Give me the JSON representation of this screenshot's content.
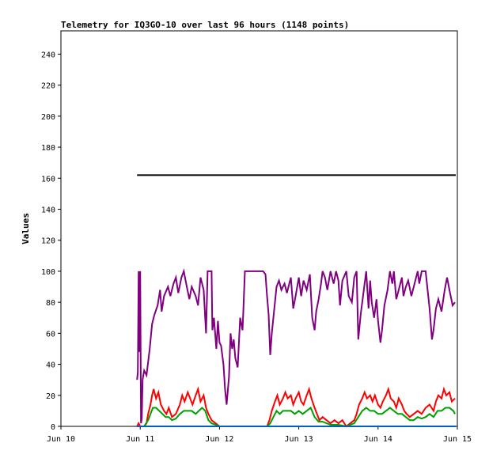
{
  "chart_data": {
    "type": "line",
    "title": "Telemetry for IQ3GO-10 over last 96 hours (1148 points)",
    "ylabel": "Values",
    "xlabel": "",
    "ylim": [
      0,
      255
    ],
    "xlim": [
      0,
      5
    ],
    "x_unit": "days",
    "x_ticks": [
      {
        "label": "Jun 10",
        "value": 0
      },
      {
        "label": "Jun 11",
        "value": 1
      },
      {
        "label": "Jun 12",
        "value": 2
      },
      {
        "label": "Jun 13",
        "value": 3
      },
      {
        "label": "Jun 14",
        "value": 4
      },
      {
        "label": "Jun 15",
        "value": 5
      }
    ],
    "y_ticks": [
      0,
      20,
      40,
      60,
      80,
      100,
      120,
      140,
      160,
      180,
      200,
      220,
      240
    ],
    "grid": false,
    "series": [
      {
        "color": "#000000",
        "points": [
          [
            0.96,
            162
          ],
          [
            4.98,
            162
          ]
        ]
      },
      {
        "color": "#800080",
        "points": [
          [
            0.96,
            30
          ],
          [
            0.97,
            35
          ],
          [
            0.98,
            100
          ],
          [
            0.99,
            48
          ],
          [
            1.0,
            100
          ],
          [
            1.01,
            2
          ],
          [
            1.02,
            5
          ],
          [
            1.03,
            30
          ],
          [
            1.05,
            36
          ],
          [
            1.08,
            33
          ],
          [
            1.12,
            50
          ],
          [
            1.15,
            66
          ],
          [
            1.18,
            72
          ],
          [
            1.22,
            78
          ],
          [
            1.25,
            88
          ],
          [
            1.27,
            74
          ],
          [
            1.3,
            84
          ],
          [
            1.35,
            90
          ],
          [
            1.38,
            84
          ],
          [
            1.42,
            92
          ],
          [
            1.45,
            96
          ],
          [
            1.48,
            86
          ],
          [
            1.52,
            96
          ],
          [
            1.55,
            100
          ],
          [
            1.58,
            92
          ],
          [
            1.62,
            82
          ],
          [
            1.65,
            90
          ],
          [
            1.7,
            84
          ],
          [
            1.73,
            78
          ],
          [
            1.76,
            96
          ],
          [
            1.8,
            88
          ],
          [
            1.83,
            60
          ],
          [
            1.85,
            100
          ],
          [
            1.9,
            100
          ],
          [
            1.91,
            62
          ],
          [
            1.93,
            70
          ],
          [
            1.96,
            50
          ],
          [
            1.98,
            68
          ],
          [
            2.0,
            54
          ],
          [
            2.02,
            52
          ],
          [
            2.05,
            40
          ],
          [
            2.07,
            24
          ],
          [
            2.09,
            14
          ],
          [
            2.12,
            32
          ],
          [
            2.14,
            60
          ],
          [
            2.16,
            50
          ],
          [
            2.18,
            56
          ],
          [
            2.2,
            44
          ],
          [
            2.23,
            38
          ],
          [
            2.26,
            70
          ],
          [
            2.29,
            62
          ],
          [
            2.3,
            74
          ],
          [
            2.32,
            100
          ],
          [
            2.35,
            100
          ],
          [
            2.4,
            100
          ],
          [
            2.48,
            100
          ],
          [
            2.55,
            100
          ],
          [
            2.58,
            98
          ],
          [
            2.6,
            84
          ],
          [
            2.62,
            72
          ],
          [
            2.64,
            46
          ],
          [
            2.66,
            60
          ],
          [
            2.7,
            80
          ],
          [
            2.72,
            90
          ],
          [
            2.75,
            94
          ],
          [
            2.78,
            88
          ],
          [
            2.82,
            92
          ],
          [
            2.85,
            86
          ],
          [
            2.88,
            92
          ],
          [
            2.9,
            96
          ],
          [
            2.93,
            76
          ],
          [
            2.96,
            84
          ],
          [
            3.0,
            96
          ],
          [
            3.03,
            84
          ],
          [
            3.06,
            94
          ],
          [
            3.1,
            88
          ],
          [
            3.14,
            98
          ],
          [
            3.17,
            70
          ],
          [
            3.2,
            62
          ],
          [
            3.22,
            74
          ],
          [
            3.25,
            82
          ],
          [
            3.28,
            92
          ],
          [
            3.3,
            100
          ],
          [
            3.33,
            96
          ],
          [
            3.36,
            88
          ],
          [
            3.4,
            100
          ],
          [
            3.44,
            92
          ],
          [
            3.47,
            100
          ],
          [
            3.5,
            94
          ],
          [
            3.52,
            78
          ],
          [
            3.55,
            94
          ],
          [
            3.6,
            100
          ],
          [
            3.63,
            84
          ],
          [
            3.67,
            80
          ],
          [
            3.7,
            96
          ],
          [
            3.73,
            100
          ],
          [
            3.75,
            56
          ],
          [
            3.78,
            72
          ],
          [
            3.82,
            88
          ],
          [
            3.85,
            100
          ],
          [
            3.88,
            76
          ],
          [
            3.9,
            94
          ],
          [
            3.92,
            80
          ],
          [
            3.95,
            70
          ],
          [
            3.98,
            82
          ],
          [
            4.0,
            68
          ],
          [
            4.03,
            54
          ],
          [
            4.05,
            62
          ],
          [
            4.08,
            78
          ],
          [
            4.12,
            88
          ],
          [
            4.15,
            100
          ],
          [
            4.18,
            92
          ],
          [
            4.2,
            100
          ],
          [
            4.23,
            82
          ],
          [
            4.26,
            88
          ],
          [
            4.3,
            96
          ],
          [
            4.32,
            84
          ],
          [
            4.35,
            90
          ],
          [
            4.38,
            94
          ],
          [
            4.42,
            84
          ],
          [
            4.46,
            92
          ],
          [
            4.5,
            100
          ],
          [
            4.52,
            92
          ],
          [
            4.55,
            100
          ],
          [
            4.6,
            100
          ],
          [
            4.65,
            76
          ],
          [
            4.68,
            56
          ],
          [
            4.7,
            62
          ],
          [
            4.73,
            76
          ],
          [
            4.76,
            82
          ],
          [
            4.8,
            74
          ],
          [
            4.84,
            88
          ],
          [
            4.87,
            96
          ],
          [
            4.9,
            88
          ],
          [
            4.94,
            78
          ],
          [
            4.97,
            80
          ]
        ]
      },
      {
        "color": "#ff0000",
        "points": [
          [
            0.96,
            0
          ],
          [
            0.98,
            2
          ],
          [
            1.0,
            0
          ],
          [
            1.05,
            0
          ],
          [
            1.08,
            2
          ],
          [
            1.1,
            8
          ],
          [
            1.13,
            14
          ],
          [
            1.15,
            20
          ],
          [
            1.17,
            24
          ],
          [
            1.2,
            18
          ],
          [
            1.23,
            22
          ],
          [
            1.26,
            14
          ],
          [
            1.3,
            10
          ],
          [
            1.33,
            8
          ],
          [
            1.36,
            12
          ],
          [
            1.4,
            6
          ],
          [
            1.45,
            8
          ],
          [
            1.5,
            14
          ],
          [
            1.53,
            20
          ],
          [
            1.56,
            16
          ],
          [
            1.6,
            22
          ],
          [
            1.63,
            18
          ],
          [
            1.66,
            14
          ],
          [
            1.7,
            20
          ],
          [
            1.73,
            24
          ],
          [
            1.76,
            16
          ],
          [
            1.8,
            20
          ],
          [
            1.83,
            12
          ],
          [
            1.86,
            8
          ],
          [
            1.9,
            4
          ],
          [
            1.95,
            2
          ],
          [
            2.0,
            0
          ],
          [
            2.2,
            0
          ],
          [
            2.4,
            0
          ],
          [
            2.55,
            0
          ],
          [
            2.6,
            0
          ],
          [
            2.63,
            4
          ],
          [
            2.66,
            10
          ],
          [
            2.7,
            16
          ],
          [
            2.73,
            20
          ],
          [
            2.76,
            14
          ],
          [
            2.8,
            18
          ],
          [
            2.83,
            22
          ],
          [
            2.86,
            18
          ],
          [
            2.9,
            20
          ],
          [
            2.93,
            14
          ],
          [
            2.96,
            18
          ],
          [
            3.0,
            22
          ],
          [
            3.03,
            16
          ],
          [
            3.06,
            14
          ],
          [
            3.1,
            20
          ],
          [
            3.13,
            24
          ],
          [
            3.16,
            18
          ],
          [
            3.2,
            12
          ],
          [
            3.23,
            8
          ],
          [
            3.26,
            4
          ],
          [
            3.3,
            6
          ],
          [
            3.35,
            4
          ],
          [
            3.4,
            2
          ],
          [
            3.45,
            4
          ],
          [
            3.5,
            2
          ],
          [
            3.55,
            4
          ],
          [
            3.6,
            0
          ],
          [
            3.65,
            2
          ],
          [
            3.7,
            4
          ],
          [
            3.73,
            8
          ],
          [
            3.76,
            14
          ],
          [
            3.8,
            18
          ],
          [
            3.83,
            22
          ],
          [
            3.86,
            18
          ],
          [
            3.9,
            20
          ],
          [
            3.93,
            16
          ],
          [
            3.96,
            20
          ],
          [
            4.0,
            14
          ],
          [
            4.03,
            12
          ],
          [
            4.06,
            16
          ],
          [
            4.1,
            20
          ],
          [
            4.13,
            24
          ],
          [
            4.16,
            18
          ],
          [
            4.2,
            16
          ],
          [
            4.23,
            12
          ],
          [
            4.26,
            18
          ],
          [
            4.3,
            14
          ],
          [
            4.33,
            10
          ],
          [
            4.36,
            8
          ],
          [
            4.4,
            6
          ],
          [
            4.45,
            8
          ],
          [
            4.5,
            10
          ],
          [
            4.55,
            8
          ],
          [
            4.6,
            12
          ],
          [
            4.65,
            14
          ],
          [
            4.7,
            10
          ],
          [
            4.73,
            16
          ],
          [
            4.76,
            20
          ],
          [
            4.8,
            18
          ],
          [
            4.83,
            24
          ],
          [
            4.86,
            20
          ],
          [
            4.9,
            22
          ],
          [
            4.93,
            16
          ],
          [
            4.97,
            18
          ]
        ]
      },
      {
        "color": "#00a000",
        "points": [
          [
            0.96,
            0
          ],
          [
            1.0,
            0
          ],
          [
            1.05,
            0
          ],
          [
            1.1,
            4
          ],
          [
            1.13,
            8
          ],
          [
            1.16,
            12
          ],
          [
            1.2,
            12
          ],
          [
            1.24,
            10
          ],
          [
            1.28,
            8
          ],
          [
            1.32,
            6
          ],
          [
            1.36,
            6
          ],
          [
            1.4,
            4
          ],
          [
            1.45,
            5
          ],
          [
            1.5,
            8
          ],
          [
            1.55,
            10
          ],
          [
            1.6,
            10
          ],
          [
            1.65,
            10
          ],
          [
            1.7,
            8
          ],
          [
            1.74,
            10
          ],
          [
            1.78,
            12
          ],
          [
            1.82,
            10
          ],
          [
            1.86,
            4
          ],
          [
            1.9,
            2
          ],
          [
            1.95,
            1
          ],
          [
            2.0,
            0
          ],
          [
            2.3,
            0
          ],
          [
            2.6,
            0
          ],
          [
            2.64,
            2
          ],
          [
            2.68,
            6
          ],
          [
            2.72,
            10
          ],
          [
            2.76,
            8
          ],
          [
            2.8,
            10
          ],
          [
            2.85,
            10
          ],
          [
            2.9,
            10
          ],
          [
            2.95,
            8
          ],
          [
            3.0,
            10
          ],
          [
            3.05,
            8
          ],
          [
            3.1,
            10
          ],
          [
            3.15,
            12
          ],
          [
            3.2,
            6
          ],
          [
            3.25,
            3
          ],
          [
            3.3,
            3
          ],
          [
            3.4,
            1
          ],
          [
            3.5,
            1
          ],
          [
            3.6,
            0
          ],
          [
            3.7,
            2
          ],
          [
            3.75,
            6
          ],
          [
            3.8,
            10
          ],
          [
            3.85,
            12
          ],
          [
            3.9,
            10
          ],
          [
            3.95,
            10
          ],
          [
            4.0,
            8
          ],
          [
            4.05,
            8
          ],
          [
            4.1,
            10
          ],
          [
            4.15,
            12
          ],
          [
            4.2,
            10
          ],
          [
            4.25,
            8
          ],
          [
            4.3,
            8
          ],
          [
            4.35,
            6
          ],
          [
            4.4,
            4
          ],
          [
            4.45,
            4
          ],
          [
            4.5,
            6
          ],
          [
            4.55,
            5
          ],
          [
            4.6,
            6
          ],
          [
            4.65,
            8
          ],
          [
            4.7,
            6
          ],
          [
            4.75,
            10
          ],
          [
            4.8,
            10
          ],
          [
            4.85,
            12
          ],
          [
            4.9,
            12
          ],
          [
            4.95,
            10
          ],
          [
            4.97,
            8
          ]
        ]
      },
      {
        "color": "#0060c0",
        "points": [
          [
            0.96,
            0
          ],
          [
            4.98,
            0
          ]
        ]
      }
    ]
  }
}
